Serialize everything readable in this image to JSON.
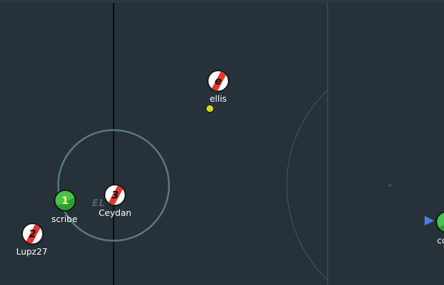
{
  "colors": {
    "field_bg": "#26313a",
    "line_dark": "#0a0e10",
    "line_faint": "#3c4c56",
    "kickoff_circle": "#5a7a82",
    "red_team": "#e8332e",
    "green_team": "#2aa033",
    "ball": "#d6d225",
    "arrow": "#4a7ce6"
  },
  "players": [
    {
      "id": "ellis",
      "avatar": "e",
      "name": "ellis",
      "team": "red"
    },
    {
      "id": "scribe",
      "avatar": "1",
      "name": "scribe",
      "team": "green"
    },
    {
      "id": "ceydan",
      "avatar": "3",
      "name": "Ceydan",
      "team": "red"
    },
    {
      "id": "lupz27",
      "avatar": "2",
      "name": "Lupz27",
      "team": "red"
    },
    {
      "id": "corl",
      "avatar": "",
      "name": "corl",
      "team": "green"
    }
  ],
  "logo_text": "EL",
  "ball_icon": "ball-icon",
  "offscreen_indicator_icon": "arrow-right-icon"
}
